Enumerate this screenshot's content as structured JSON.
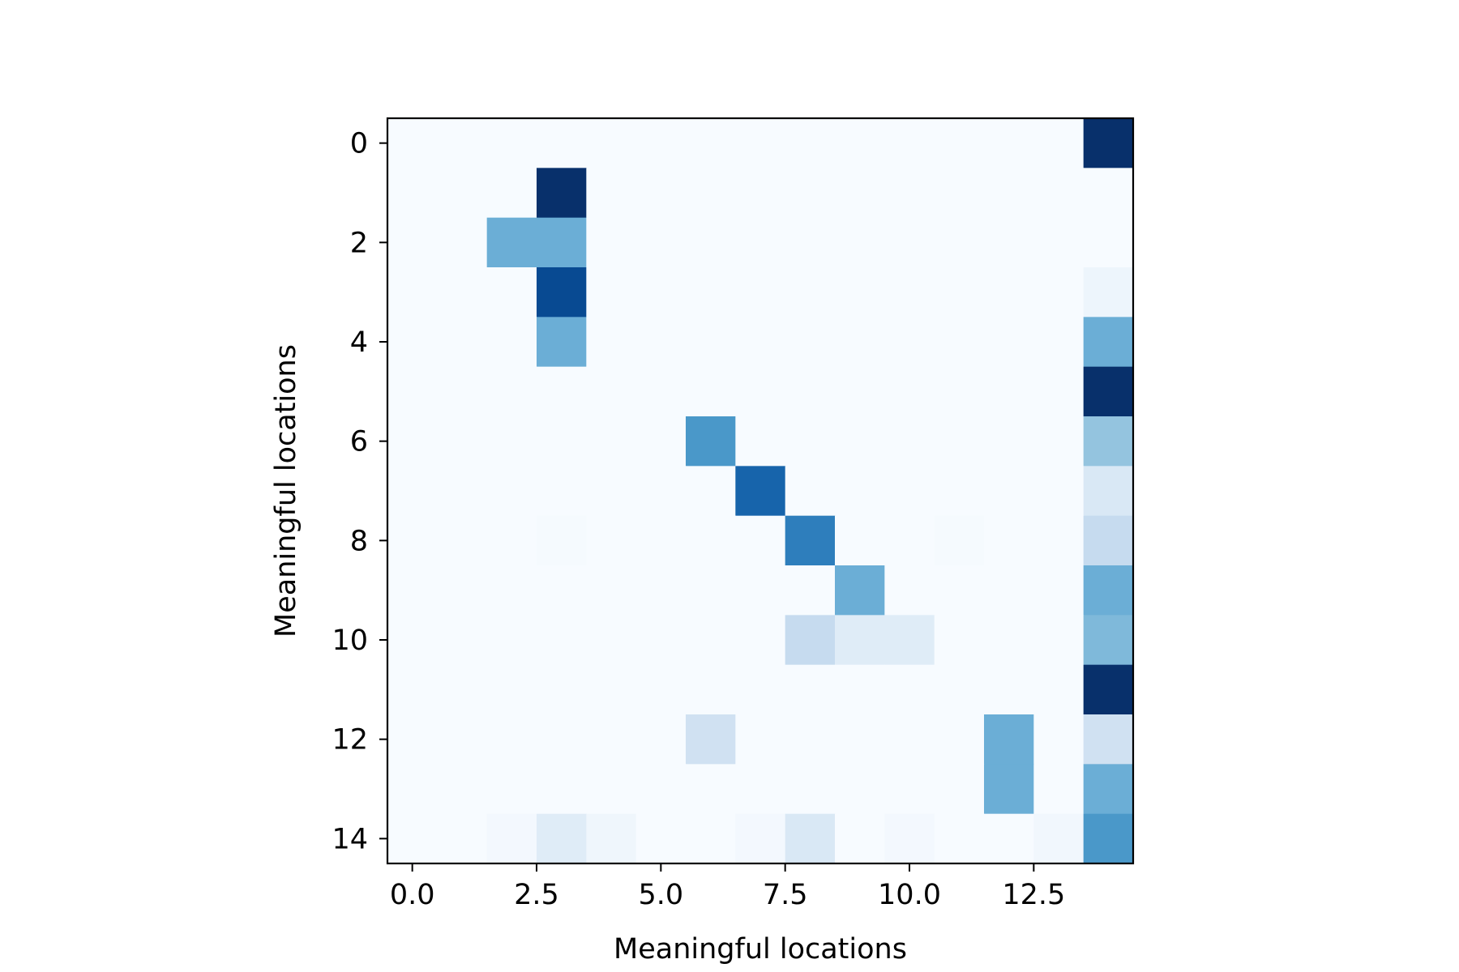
{
  "chart_data": {
    "type": "heatmap",
    "title": "",
    "xlabel": "Meaningful locations",
    "ylabel": "Meaningful locations",
    "colormap": "Blues",
    "rows": 15,
    "cols": 15,
    "xlim": [
      -0.5,
      14.5
    ],
    "ylim": [
      14.5,
      -0.5
    ],
    "xticks": [
      0.0,
      2.5,
      5.0,
      7.5,
      10.0,
      12.5
    ],
    "xtick_labels": [
      "0.0",
      "2.5",
      "5.0",
      "7.5",
      "10.0",
      "12.5"
    ],
    "yticks": [
      0,
      2,
      4,
      6,
      8,
      10,
      12,
      14
    ],
    "ytick_labels": [
      "0",
      "2",
      "4",
      "6",
      "8",
      "10",
      "12",
      "14"
    ],
    "grid": false,
    "matrix": [
      [
        0,
        0,
        0,
        0,
        0,
        0,
        0,
        0,
        0,
        0,
        0,
        0,
        0,
        0,
        1.0
      ],
      [
        0,
        0,
        0,
        1.0,
        0,
        0,
        0,
        0,
        0,
        0,
        0,
        0,
        0,
        0,
        0
      ],
      [
        0,
        0,
        0.5,
        0.5,
        0,
        0,
        0,
        0,
        0,
        0,
        0,
        0,
        0,
        0,
        0
      ],
      [
        0,
        0,
        0,
        0.9,
        0,
        0,
        0,
        0,
        0,
        0,
        0,
        0,
        0,
        0,
        0.05
      ],
      [
        0,
        0,
        0,
        0.5,
        0,
        0,
        0,
        0,
        0,
        0,
        0,
        0,
        0,
        0,
        0.5
      ],
      [
        0,
        0,
        0,
        0,
        0,
        0,
        0,
        0,
        0,
        0,
        0,
        0,
        0,
        0,
        1.0
      ],
      [
        0,
        0,
        0,
        0,
        0,
        0,
        0.6,
        0,
        0,
        0,
        0,
        0,
        0,
        0,
        0.4
      ],
      [
        0,
        0,
        0,
        0,
        0,
        0,
        0,
        0.8,
        0,
        0,
        0,
        0,
        0,
        0,
        0.15
      ],
      [
        0,
        0,
        0,
        0.01,
        0,
        0,
        0,
        0,
        0.7,
        0,
        0,
        0.01,
        0,
        0,
        0.25
      ],
      [
        0,
        0,
        0,
        0,
        0,
        0,
        0,
        0,
        0,
        0.5,
        0,
        0,
        0,
        0,
        0.5
      ],
      [
        0,
        0,
        0,
        0,
        0,
        0,
        0,
        0,
        0.25,
        0.12,
        0.12,
        0,
        0,
        0,
        0.45
      ],
      [
        0,
        0,
        0,
        0,
        0,
        0,
        0,
        0,
        0,
        0,
        0,
        0,
        0,
        0,
        1.0
      ],
      [
        0,
        0,
        0,
        0,
        0,
        0,
        0.2,
        0,
        0,
        0,
        0,
        0,
        0.5,
        0,
        0.2
      ],
      [
        0,
        0,
        0,
        0,
        0,
        0,
        0,
        0,
        0,
        0,
        0,
        0,
        0.5,
        0,
        0.5
      ],
      [
        0,
        0,
        0.02,
        0.12,
        0.04,
        0,
        0,
        0.02,
        0.15,
        0,
        0.02,
        0,
        0,
        0.03,
        0.6
      ]
    ]
  }
}
